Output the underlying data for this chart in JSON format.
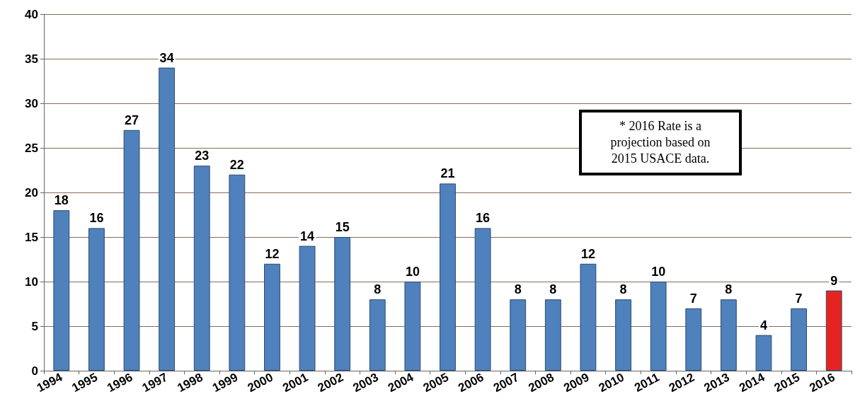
{
  "chart_data": {
    "type": "bar",
    "categories": [
      "1994",
      "1995",
      "1996",
      "1997",
      "1998",
      "1999",
      "2000",
      "2001",
      "2002",
      "2003",
      "2004",
      "2005",
      "2006",
      "2007",
      "2008",
      "2009",
      "2010",
      "2011",
      "2012",
      "2013",
      "2014",
      "2015",
      "2016"
    ],
    "values": [
      18,
      16,
      27,
      34,
      23,
      22,
      12,
      14,
      15,
      8,
      10,
      21,
      16,
      8,
      8,
      12,
      8,
      10,
      7,
      8,
      4,
      7,
      9
    ],
    "colors": [
      "#4f81bd",
      "#4f81bd",
      "#4f81bd",
      "#4f81bd",
      "#4f81bd",
      "#4f81bd",
      "#4f81bd",
      "#4f81bd",
      "#4f81bd",
      "#4f81bd",
      "#4f81bd",
      "#4f81bd",
      "#4f81bd",
      "#4f81bd",
      "#4f81bd",
      "#4f81bd",
      "#4f81bd",
      "#4f81bd",
      "#4f81bd",
      "#4f81bd",
      "#4f81bd",
      "#4f81bd",
      "#e52421"
    ],
    "ylim": [
      0,
      40
    ],
    "yticks": [
      0,
      5,
      10,
      15,
      20,
      25,
      30,
      35,
      40
    ],
    "grid": "y",
    "data_labels": true,
    "annotations": [
      "* 2016 Rate is a projection based on 2015 USACE data."
    ]
  }
}
